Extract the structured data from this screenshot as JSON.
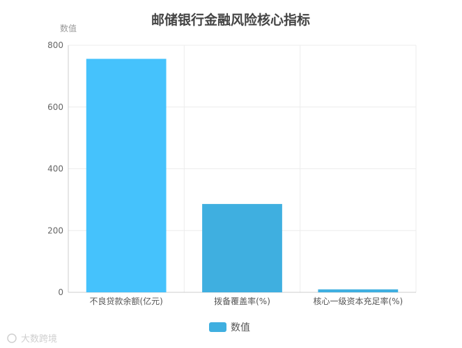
{
  "chart_data": {
    "type": "bar",
    "title": "邮储银行金融风险核心指标",
    "ylabel": "数值",
    "categories": [
      "不良贷款余额(亿元)",
      "拨备覆盖率(%)",
      "核心一级资本充足率(%)"
    ],
    "series": [
      {
        "name": "数值",
        "values": [
          756,
          286,
          9.6
        ]
      }
    ],
    "ylim": [
      0,
      800
    ],
    "yticks": [
      0,
      200,
      400,
      600,
      800
    ],
    "grid": true,
    "legend": "bottom-center",
    "colors": [
      "#45c2fc",
      "#3fafe0",
      "#3fafe0"
    ],
    "legend_color": "#3fafe0"
  },
  "watermark": "大数跨境"
}
